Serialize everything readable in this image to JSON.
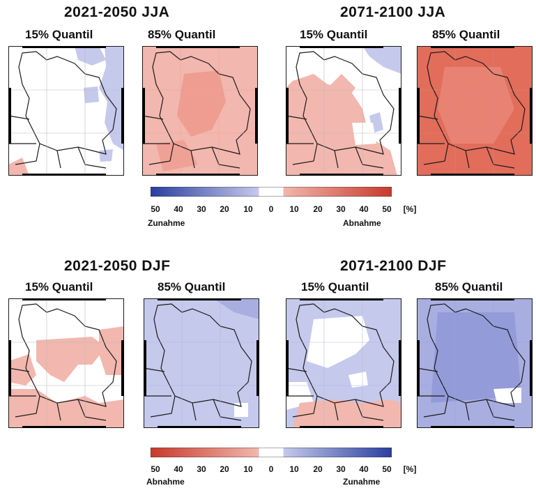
{
  "panels": {
    "top_left": {
      "title": "2021-2050   JJA",
      "quantil_low": "15% Quantil",
      "quantil_high": "85% Quantil"
    },
    "top_right": {
      "title": "2071-2100   JJA",
      "quantil_low": "15% Quantil",
      "quantil_high": "85% Quantil"
    },
    "bottom_left": {
      "title": "2021-2050   DJF",
      "quantil_low": "15% Quantil",
      "quantil_high": "85% Quantil"
    },
    "bottom_right": {
      "title": "2071-2100   DJF",
      "quantil_low": "15% Quantil",
      "quantil_high": "85% Quantil"
    }
  },
  "colorbar_top": {
    "ticks": [
      "50",
      "40",
      "30",
      "20",
      "10",
      "0",
      "10",
      "20",
      "30",
      "40",
      "50"
    ],
    "unit": "[%]",
    "left_label": "Zunahme",
    "right_label": "Abnahme",
    "left_color": "#2a3e9e",
    "right_color": "#c8392b"
  },
  "colorbar_bottom": {
    "ticks": [
      "50",
      "40",
      "30",
      "20",
      "10",
      "0",
      "10",
      "20",
      "30",
      "40",
      "50"
    ],
    "unit": "[%]",
    "left_label": "Abnahme",
    "right_label": "Zunahme",
    "left_color": "#c8392b",
    "right_color": "#2a3e9e"
  },
  "map_fills": {
    "jja_2021_q15": "mostly-white",
    "jja_2021_q85": "light-red",
    "jja_2071_q15": "white-and-light-red",
    "jja_2071_q85": "red",
    "djf_2021_q15": "white-and-light-red",
    "djf_2021_q85": "light-blue",
    "djf_2071_q15": "white-and-light-blue",
    "djf_2071_q85": "blue"
  },
  "colors": {
    "white": "#ffffff",
    "light_red": "#f2b7ae",
    "mid_red": "#ec9283",
    "red": "#e26d5b",
    "light_blue": "#c5c9ec",
    "mid_blue": "#a9aee1",
    "blue": "#8c93d6",
    "border": "#1a1a1a"
  }
}
